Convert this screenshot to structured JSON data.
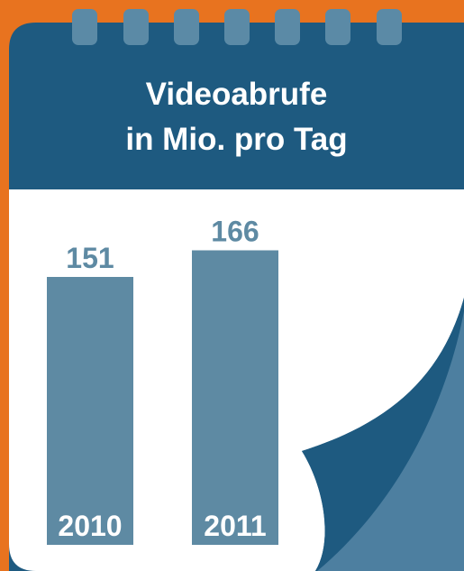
{
  "chart_data": {
    "type": "bar",
    "title": "Videoabrufe\nin Mio. pro Tag",
    "categories": [
      "2010",
      "2011"
    ],
    "values": [
      151,
      166
    ],
    "color": "#5e8aa3"
  }
}
